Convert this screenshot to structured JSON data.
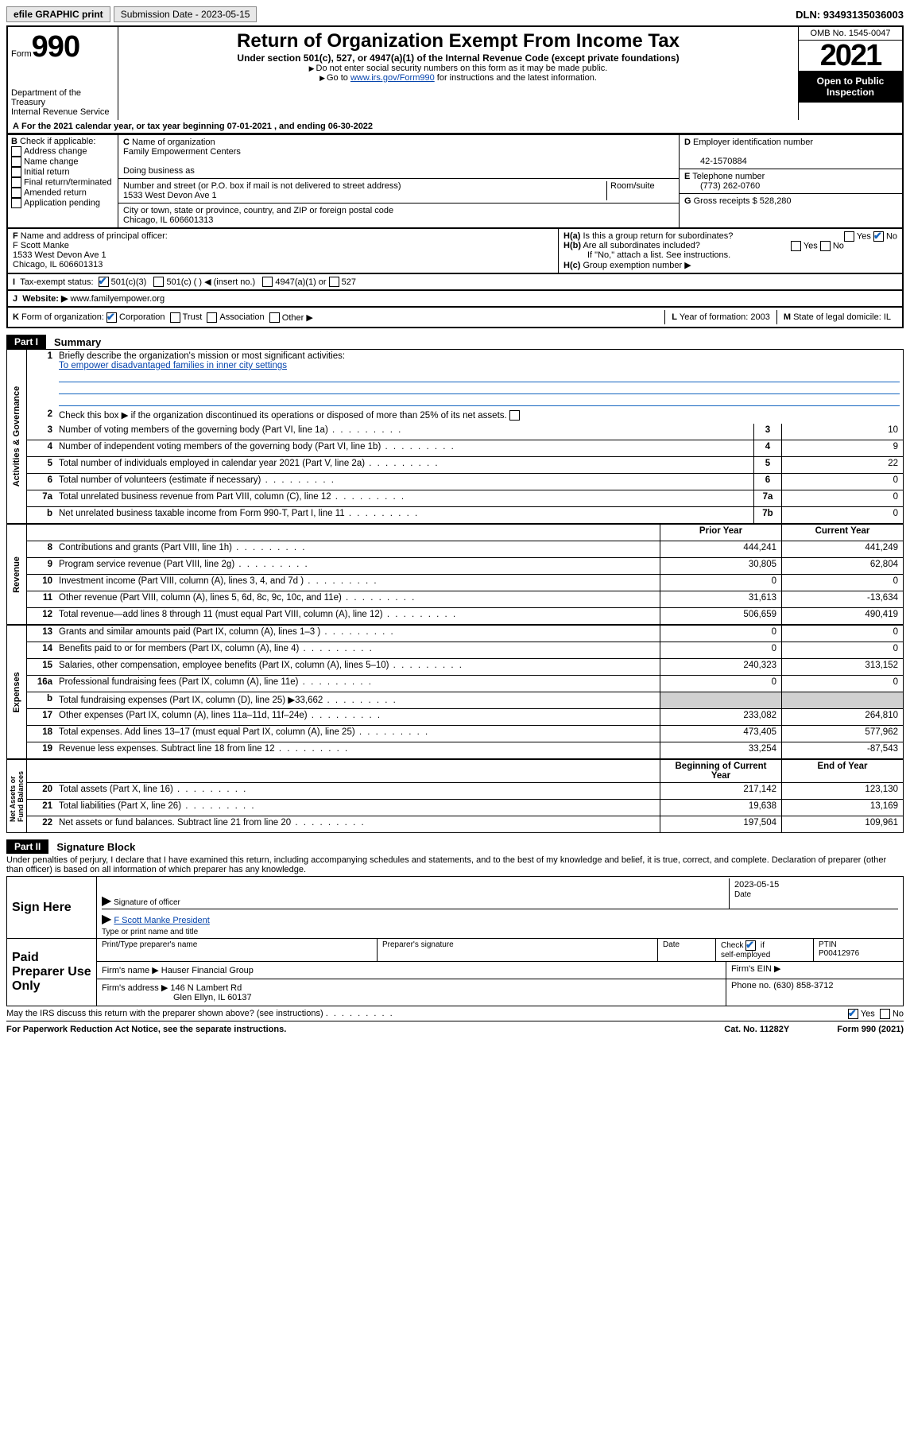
{
  "topbar": {
    "efile": "efile GRAPHIC print",
    "submission_label": "Submission Date - 2023-05-15",
    "dln": "DLN: 93493135036003"
  },
  "header": {
    "form_prefix": "Form",
    "form_number": "990",
    "title": "Return of Organization Exempt From Income Tax",
    "subtitle": "Under section 501(c), 527, or 4947(a)(1) of the Internal Revenue Code (except private foundations)",
    "note1": "Do not enter social security numbers on this form as it may be made public.",
    "note2_prefix": "Go to ",
    "note2_link": "www.irs.gov/Form990",
    "note2_suffix": " for instructions and the latest information.",
    "dept": "Department of the Treasury",
    "irs": "Internal Revenue Service",
    "omb": "OMB No. 1545-0047",
    "year": "2021",
    "open": "Open to Public Inspection"
  },
  "a_line": "For the 2021 calendar year, or tax year beginning 07-01-2021  , and ending 06-30-2022",
  "b": {
    "label": "Check if applicable:",
    "items": [
      "Address change",
      "Name change",
      "Initial return",
      "Final return/terminated",
      "Amended return",
      "Application pending"
    ]
  },
  "c": {
    "name_label": "Name of organization",
    "name": "Family Empowerment Centers",
    "dba_label": "Doing business as",
    "addr_label": "Number and street (or P.O. box if mail is not delivered to street address)",
    "room_label": "Room/suite",
    "addr": "1533 West Devon Ave 1",
    "city_label": "City or town, state or province, country, and ZIP or foreign postal code",
    "city": "Chicago, IL  606601313"
  },
  "d": {
    "label": "Employer identification number",
    "value": "42-1570884"
  },
  "e": {
    "label": "Telephone number",
    "value": "(773) 262-0760"
  },
  "g": {
    "label": "Gross receipts $",
    "value": "528,280"
  },
  "f": {
    "label": "Name and address of principal officer:",
    "name": "F Scott Manke",
    "addr1": "1533 West Devon Ave 1",
    "addr2": "Chicago, IL  606601313"
  },
  "h": {
    "a": "Is this a group return for subordinates?",
    "b": "Are all subordinates included?",
    "b_note": "If \"No,\" attach a list. See instructions.",
    "c": "Group exemption number ▶"
  },
  "i": {
    "label": "Tax-exempt status:",
    "opts": [
      "501(c)(3)",
      "501(c) (    ) ◀ (insert no.)",
      "4947(a)(1) or",
      "527"
    ]
  },
  "j": {
    "label": "Website: ▶",
    "value": "www.familyempower.org"
  },
  "k": {
    "label": "Form of organization:",
    "opts": [
      "Corporation",
      "Trust",
      "Association",
      "Other ▶"
    ]
  },
  "l": {
    "label": "Year of formation:",
    "value": "2003"
  },
  "m": {
    "label": "State of legal domicile:",
    "value": "IL"
  },
  "part1": {
    "label": "Part I",
    "title": "Summary",
    "q1": "Briefly describe the organization's mission or most significant activities:",
    "mission": "To empower disadvantaged families in inner city settings",
    "q2": "Check this box ▶       if the organization discontinued its operations or disposed of more than 25% of its net assets.",
    "rows_gov": [
      {
        "n": "3",
        "d": "Number of voting members of the governing body (Part VI, line 1a)",
        "ref": "3",
        "v": "10"
      },
      {
        "n": "4",
        "d": "Number of independent voting members of the governing body (Part VI, line 1b)",
        "ref": "4",
        "v": "9"
      },
      {
        "n": "5",
        "d": "Total number of individuals employed in calendar year 2021 (Part V, line 2a)",
        "ref": "5",
        "v": "22"
      },
      {
        "n": "6",
        "d": "Total number of volunteers (estimate if necessary)",
        "ref": "6",
        "v": "0"
      },
      {
        "n": "7a",
        "d": "Total unrelated business revenue from Part VIII, column (C), line 12",
        "ref": "7a",
        "v": "0"
      },
      {
        "n": "b",
        "d": "Net unrelated business taxable income from Form 990-T, Part I, line 11",
        "ref": "7b",
        "v": "0"
      }
    ],
    "col_prior": "Prior Year",
    "col_current": "Current Year",
    "rows_rev": [
      {
        "n": "8",
        "d": "Contributions and grants (Part VIII, line 1h)",
        "p": "444,241",
        "c": "441,249"
      },
      {
        "n": "9",
        "d": "Program service revenue (Part VIII, line 2g)",
        "p": "30,805",
        "c": "62,804"
      },
      {
        "n": "10",
        "d": "Investment income (Part VIII, column (A), lines 3, 4, and 7d )",
        "p": "0",
        "c": "0"
      },
      {
        "n": "11",
        "d": "Other revenue (Part VIII, column (A), lines 5, 6d, 8c, 9c, 10c, and 11e)",
        "p": "31,613",
        "c": "-13,634"
      },
      {
        "n": "12",
        "d": "Total revenue—add lines 8 through 11 (must equal Part VIII, column (A), line 12)",
        "p": "506,659",
        "c": "490,419"
      }
    ],
    "rows_exp": [
      {
        "n": "13",
        "d": "Grants and similar amounts paid (Part IX, column (A), lines 1–3 )",
        "p": "0",
        "c": "0"
      },
      {
        "n": "14",
        "d": "Benefits paid to or for members (Part IX, column (A), line 4)",
        "p": "0",
        "c": "0"
      },
      {
        "n": "15",
        "d": "Salaries, other compensation, employee benefits (Part IX, column (A), lines 5–10)",
        "p": "240,323",
        "c": "313,152"
      },
      {
        "n": "16a",
        "d": "Professional fundraising fees (Part IX, column (A), line 11e)",
        "p": "0",
        "c": "0"
      },
      {
        "n": "b",
        "d": "Total fundraising expenses (Part IX, column (D), line 25) ▶33,662",
        "p": "",
        "c": "",
        "shaded": true
      },
      {
        "n": "17",
        "d": "Other expenses (Part IX, column (A), lines 11a–11d, 11f–24e)",
        "p": "233,082",
        "c": "264,810"
      },
      {
        "n": "18",
        "d": "Total expenses. Add lines 13–17 (must equal Part IX, column (A), line 25)",
        "p": "473,405",
        "c": "577,962"
      },
      {
        "n": "19",
        "d": "Revenue less expenses. Subtract line 18 from line 12",
        "p": "33,254",
        "c": "-87,543"
      }
    ],
    "col_begin": "Beginning of Current Year",
    "col_end": "End of Year",
    "rows_net": [
      {
        "n": "20",
        "d": "Total assets (Part X, line 16)",
        "p": "217,142",
        "c": "123,130"
      },
      {
        "n": "21",
        "d": "Total liabilities (Part X, line 26)",
        "p": "19,638",
        "c": "13,169"
      },
      {
        "n": "22",
        "d": "Net assets or fund balances. Subtract line 21 from line 20",
        "p": "197,504",
        "c": "109,961"
      }
    ]
  },
  "part2": {
    "label": "Part II",
    "title": "Signature Block",
    "decl": "Under penalties of perjury, I declare that I have examined this return, including accompanying schedules and statements, and to the best of my knowledge and belief, it is true, correct, and complete. Declaration of preparer (other than officer) is based on all information of which preparer has any knowledge.",
    "sign_here": "Sign Here",
    "sig_officer": "Signature of officer",
    "date_label": "Date",
    "date": "2023-05-15",
    "name_title": "F Scott Manke  President",
    "type_label": "Type or print name and title",
    "paid": "Paid Preparer Use Only",
    "prep_name_label": "Print/Type preparer's name",
    "prep_sig_label": "Preparer's signature",
    "check_if": "Check",
    "self_emp": "self-employed",
    "ptin_label": "PTIN",
    "ptin": "P00412976",
    "firm_name_label": "Firm's name   ▶",
    "firm_name": "Hauser Financial Group",
    "firm_ein_label": "Firm's EIN ▶",
    "firm_addr_label": "Firm's address ▶",
    "firm_addr1": "146 N Lambert Rd",
    "firm_addr2": "Glen Ellyn, IL  60137",
    "phone_label": "Phone no.",
    "phone": "(630) 858-3712",
    "may_irs": "May the IRS discuss this return with the preparer shown above? (see instructions)"
  },
  "footer": {
    "left": "For Paperwork Reduction Act Notice, see the separate instructions.",
    "mid": "Cat. No. 11282Y",
    "right": "Form 990 (2021)"
  },
  "labels": {
    "yes": "Yes",
    "no": "No",
    "letters": {
      "A": "A",
      "B": "B",
      "C": "C",
      "D": "D",
      "E": "E",
      "F": "F",
      "G": "G",
      "H": "H",
      "I": "I",
      "J": "J",
      "K": "K",
      "L": "L",
      "M": "M"
    }
  }
}
